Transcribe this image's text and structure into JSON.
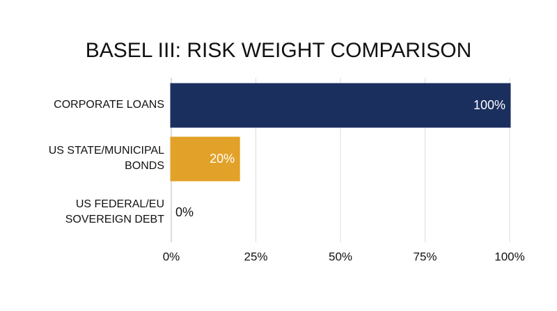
{
  "chart_data": {
    "type": "hbar",
    "title": "BASEL III: RISK WEIGHT COMPARISON",
    "categories": [
      "CORPORATE LOANS",
      "US STATE/MUNICIPAL BONDS",
      "US FEDERAL/EU SOVEREIGN DEBT"
    ],
    "values": [
      100,
      20,
      0
    ],
    "value_labels": [
      "100%",
      "20%",
      "0%"
    ],
    "colors": [
      "#1b2f5f",
      "#e2a128",
      "#e2a128"
    ],
    "xlim": [
      0,
      100
    ],
    "xticks": [
      {
        "value": 0,
        "label": "0%"
      },
      {
        "value": 25,
        "label": "25%"
      },
      {
        "value": 50,
        "label": "50%"
      },
      {
        "value": 75,
        "label": "75%"
      },
      {
        "value": 100,
        "label": "100%"
      }
    ],
    "grid": true
  }
}
